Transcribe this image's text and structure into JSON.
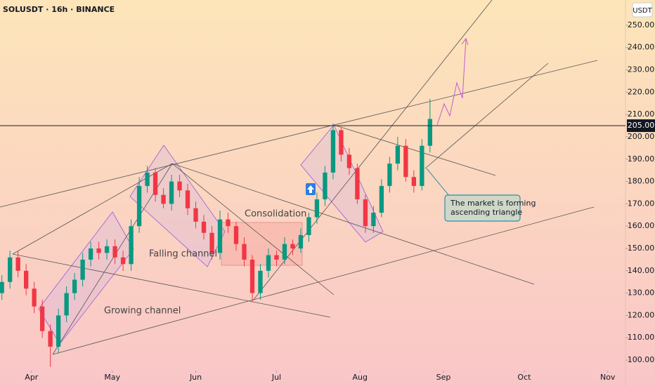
{
  "chart_data": {
    "type": "candlestick",
    "title": "SOLUSDT · 16h · BINANCE",
    "ylabel": "USDT",
    "x": [
      -11,
      -8,
      -5,
      -2,
      1,
      4,
      7,
      10,
      13,
      16,
      19,
      22,
      25,
      28,
      31,
      34,
      37,
      40,
      43,
      46,
      49,
      52,
      55,
      58,
      61,
      64,
      67,
      70,
      73,
      76,
      79,
      82,
      85,
      88,
      91,
      94,
      97,
      100,
      103,
      106,
      109,
      112,
      115,
      118,
      121,
      124,
      127,
      130,
      133,
      136,
      139,
      142,
      145,
      148
    ],
    "open": [
      130,
      135,
      146,
      140,
      132,
      124,
      113,
      106,
      120,
      130,
      136,
      145,
      150,
      148,
      151,
      146,
      143,
      160,
      178,
      184,
      174,
      170,
      180,
      176,
      168,
      162,
      157,
      148,
      163,
      160,
      152,
      145,
      130,
      140,
      147,
      145,
      152,
      150,
      156,
      164,
      172,
      184,
      203,
      192,
      186,
      172,
      160,
      166,
      178,
      188,
      196,
      182,
      178,
      196
    ],
    "high": [
      138,
      149,
      149,
      143,
      135,
      127,
      116,
      123,
      133,
      139,
      148,
      153,
      153,
      154,
      154,
      149,
      163,
      182,
      187,
      186,
      177,
      183,
      183,
      179,
      171,
      165,
      160,
      167,
      166,
      162,
      155,
      147,
      143,
      150,
      149,
      155,
      154,
      159,
      166,
      175,
      187,
      206,
      204,
      195,
      188,
      174,
      169,
      181,
      191,
      200,
      199,
      185,
      199,
      217
    ],
    "low": [
      127,
      132,
      137,
      129,
      121,
      110,
      97,
      103,
      117,
      127,
      133,
      142,
      145,
      145,
      143,
      140,
      140,
      157,
      175,
      171,
      168,
      167,
      173,
      165,
      159,
      154,
      145,
      145,
      157,
      149,
      142,
      126,
      127,
      137,
      142,
      143,
      147,
      148,
      153,
      161,
      169,
      181,
      189,
      183,
      170,
      157,
      157,
      164,
      175,
      185,
      180,
      175,
      176,
      193
    ],
    "close": [
      135,
      146,
      140,
      132,
      124,
      113,
      106,
      120,
      130,
      136,
      145,
      150,
      148,
      151,
      146,
      143,
      160,
      178,
      184,
      174,
      170,
      180,
      176,
      168,
      162,
      157,
      148,
      163,
      160,
      152,
      145,
      130,
      140,
      147,
      145,
      152,
      150,
      156,
      164,
      172,
      184,
      203,
      192,
      186,
      172,
      160,
      166,
      178,
      188,
      196,
      182,
      178,
      196,
      208
    ],
    "up_color": "#089981",
    "down_color": "#f23645",
    "xlim": [
      -11.7,
      220.6
    ],
    "xticks": [
      {
        "value": 0,
        "label": "Apr"
      },
      {
        "value": 30,
        "label": "May"
      },
      {
        "value": 61,
        "label": "Jun"
      },
      {
        "value": 91,
        "label": "Jul"
      },
      {
        "value": 122,
        "label": "Aug"
      },
      {
        "value": 153,
        "label": "Sep"
      },
      {
        "value": 183,
        "label": "Oct"
      },
      {
        "value": 214,
        "label": "Nov"
      }
    ],
    "ylim": [
      95.3,
      261.3
    ],
    "yticks": [
      {
        "value": 100,
        "label": "100.00"
      },
      {
        "value": 110,
        "label": "110.00"
      },
      {
        "value": 120,
        "label": "120.00"
      },
      {
        "value": 130,
        "label": "130.00"
      },
      {
        "value": 140,
        "label": "140.00"
      },
      {
        "value": 150,
        "label": "150.00"
      },
      {
        "value": 160,
        "label": "160.00"
      },
      {
        "value": 170,
        "label": "170.00"
      },
      {
        "value": 180,
        "label": "180.00"
      },
      {
        "value": 190,
        "label": "190.00"
      },
      {
        "value": 200,
        "label": "200.00"
      },
      {
        "value": 210,
        "label": "210.00"
      },
      {
        "value": 220,
        "label": "220.00"
      },
      {
        "value": 230,
        "label": "230.00"
      },
      {
        "value": 240,
        "label": "240.00"
      },
      {
        "value": 250,
        "label": "250.00"
      }
    ],
    "hline": {
      "value": 205,
      "label": "205.00"
    },
    "annotations": [
      "Growing channel",
      "Falling channel",
      "Consolidation"
    ],
    "callout": [
      "The market is forming",
      "ascending triangle"
    ]
  }
}
